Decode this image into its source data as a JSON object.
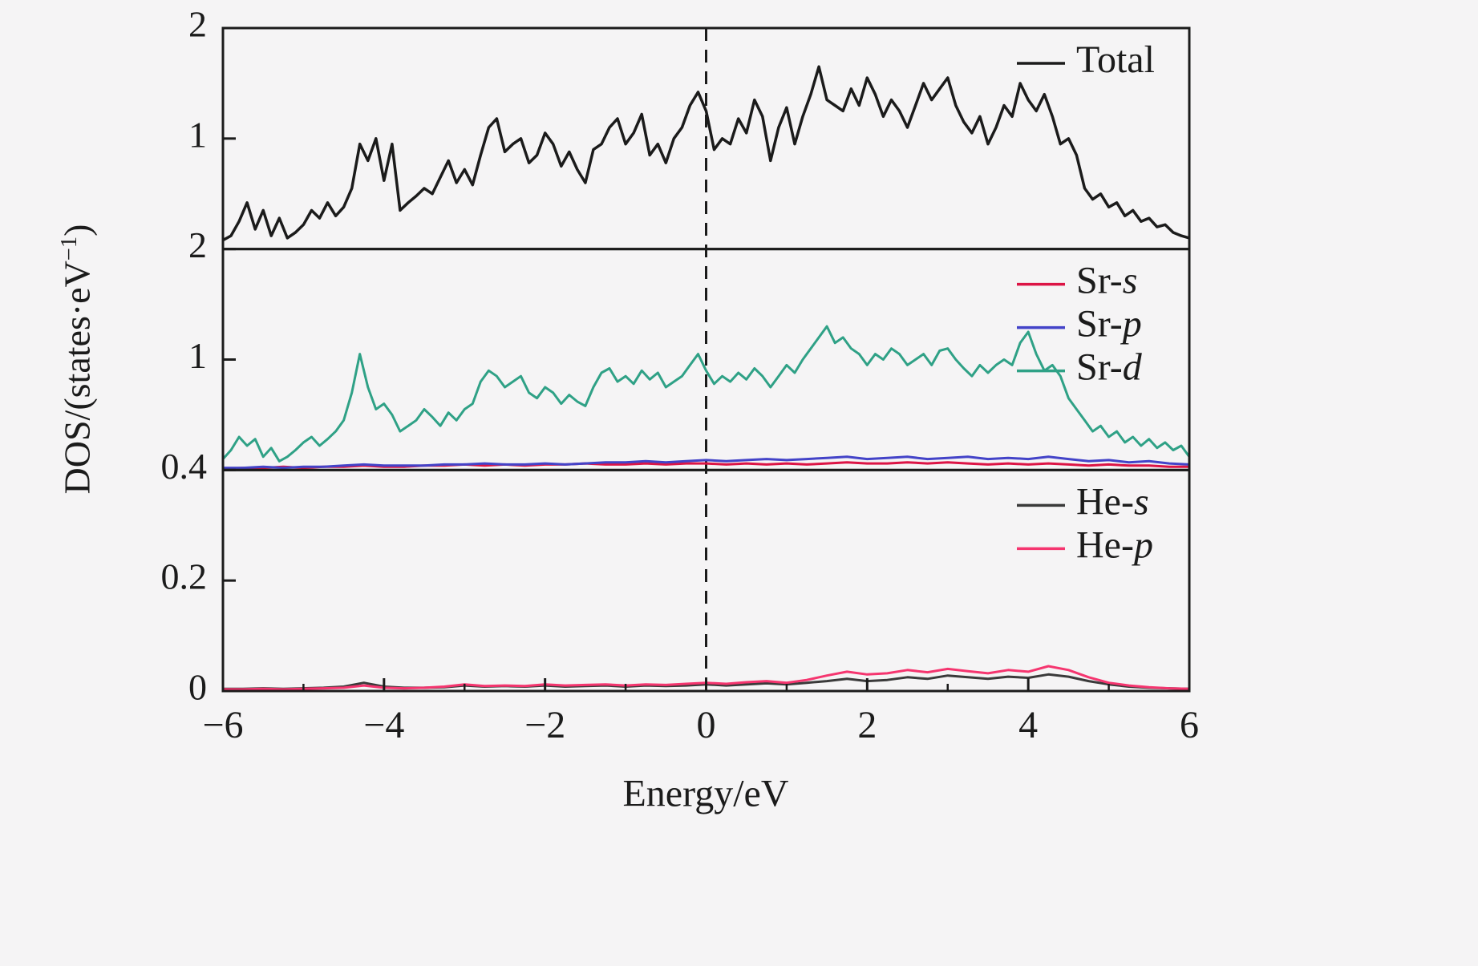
{
  "figure": {
    "background": "#f5f4f5",
    "axis_color": "#1b1b1b",
    "xlabel": "Energy/eV",
    "ylabel_prefix": "DOS/(states·eV",
    "ylabel_sup": "−1",
    "ylabel_suffix": ")"
  },
  "chart_data": {
    "type": "line",
    "title": "",
    "xlabel": "Energy/eV",
    "ylabel": "DOS/(states·eV⁻¹)",
    "x_range": [
      -6,
      6
    ],
    "x_ticks": [
      -6,
      -4,
      -2,
      0,
      2,
      4,
      6
    ],
    "x_tick_labels": [
      "−6",
      "−4",
      "−2",
      "0",
      "2",
      "4",
      "6"
    ],
    "x_minor_ticks": [
      -5,
      -3,
      -1,
      1,
      3,
      5
    ],
    "fermi_line_x": 0,
    "grid": false,
    "legend_position": "top-right",
    "panels": [
      {
        "name": "total",
        "ylim": [
          0,
          2
        ],
        "y_ticks": [
          {
            "v": 2,
            "label": "2"
          },
          {
            "v": 1,
            "label": "1"
          }
        ],
        "series": [
          {
            "name": "Total",
            "label_roman": "Total",
            "label_italic": "",
            "color": "#1b1b1b",
            "width": 3.5,
            "x_start": -6,
            "x_step": 0.1,
            "values": [
              0.08,
              0.12,
              0.25,
              0.42,
              0.18,
              0.35,
              0.12,
              0.28,
              0.1,
              0.15,
              0.22,
              0.35,
              0.28,
              0.42,
              0.3,
              0.38,
              0.55,
              0.95,
              0.8,
              1.0,
              0.62,
              0.95,
              0.35,
              0.42,
              0.48,
              0.55,
              0.5,
              0.65,
              0.8,
              0.6,
              0.72,
              0.58,
              0.85,
              1.1,
              1.18,
              0.88,
              0.95,
              1.0,
              0.78,
              0.85,
              1.05,
              0.95,
              0.75,
              0.88,
              0.72,
              0.6,
              0.9,
              0.95,
              1.1,
              1.18,
              0.95,
              1.05,
              1.22,
              0.85,
              0.95,
              0.78,
              1.0,
              1.1,
              1.3,
              1.42,
              1.25,
              0.9,
              1.0,
              0.95,
              1.18,
              1.05,
              1.35,
              1.2,
              0.8,
              1.1,
              1.28,
              0.95,
              1.2,
              1.4,
              1.65,
              1.35,
              1.3,
              1.25,
              1.45,
              1.3,
              1.55,
              1.4,
              1.2,
              1.35,
              1.25,
              1.1,
              1.3,
              1.5,
              1.35,
              1.45,
              1.55,
              1.3,
              1.15,
              1.05,
              1.2,
              0.95,
              1.1,
              1.3,
              1.2,
              1.5,
              1.35,
              1.25,
              1.4,
              1.2,
              0.95,
              1.0,
              0.85,
              0.55,
              0.45,
              0.5,
              0.38,
              0.42,
              0.3,
              0.35,
              0.25,
              0.28,
              0.2,
              0.22,
              0.15,
              0.12,
              0.1
            ]
          }
        ]
      },
      {
        "name": "sr",
        "ylim": [
          0,
          2
        ],
        "y_ticks": [
          {
            "v": 2,
            "label": "2"
          },
          {
            "v": 1,
            "label": "1"
          }
        ],
        "series": [
          {
            "name": "Sr-s",
            "label_roman": "Sr-",
            "label_italic": "s",
            "color": "#dc1445",
            "width": 3,
            "x_start": -6,
            "x_step": 0.25,
            "values": [
              0.01,
              0.02,
              0.02,
              0.03,
              0.02,
              0.03,
              0.03,
              0.04,
              0.03,
              0.03,
              0.04,
              0.04,
              0.05,
              0.04,
              0.05,
              0.04,
              0.05,
              0.05,
              0.06,
              0.05,
              0.05,
              0.06,
              0.05,
              0.06,
              0.06,
              0.05,
              0.06,
              0.05,
              0.06,
              0.05,
              0.06,
              0.07,
              0.06,
              0.06,
              0.07,
              0.06,
              0.07,
              0.06,
              0.05,
              0.06,
              0.05,
              0.06,
              0.05,
              0.04,
              0.05,
              0.04,
              0.04,
              0.03,
              0.03
            ]
          },
          {
            "name": "Sr-p",
            "label_roman": "Sr-",
            "label_italic": "p",
            "color": "#4343c8",
            "width": 3,
            "x_start": -6,
            "x_step": 0.25,
            "values": [
              0.02,
              0.02,
              0.03,
              0.02,
              0.03,
              0.03,
              0.04,
              0.05,
              0.04,
              0.04,
              0.04,
              0.05,
              0.05,
              0.06,
              0.05,
              0.05,
              0.06,
              0.05,
              0.06,
              0.07,
              0.07,
              0.08,
              0.07,
              0.08,
              0.09,
              0.08,
              0.09,
              0.1,
              0.09,
              0.1,
              0.11,
              0.12,
              0.1,
              0.11,
              0.12,
              0.1,
              0.11,
              0.12,
              0.1,
              0.11,
              0.1,
              0.12,
              0.1,
              0.08,
              0.09,
              0.07,
              0.08,
              0.06,
              0.05
            ]
          },
          {
            "name": "Sr-d",
            "label_roman": "Sr-",
            "label_italic": "d",
            "color": "#2fa186",
            "width": 3,
            "x_start": -6,
            "x_step": 0.1,
            "values": [
              0.1,
              0.18,
              0.3,
              0.22,
              0.28,
              0.12,
              0.2,
              0.08,
              0.12,
              0.18,
              0.25,
              0.3,
              0.22,
              0.28,
              0.35,
              0.45,
              0.7,
              1.05,
              0.75,
              0.55,
              0.6,
              0.5,
              0.35,
              0.4,
              0.45,
              0.55,
              0.48,
              0.4,
              0.52,
              0.45,
              0.55,
              0.6,
              0.8,
              0.9,
              0.85,
              0.75,
              0.8,
              0.85,
              0.7,
              0.65,
              0.75,
              0.7,
              0.6,
              0.68,
              0.62,
              0.58,
              0.75,
              0.88,
              0.92,
              0.8,
              0.85,
              0.78,
              0.9,
              0.82,
              0.88,
              0.75,
              0.8,
              0.85,
              0.95,
              1.05,
              0.9,
              0.78,
              0.85,
              0.8,
              0.88,
              0.82,
              0.92,
              0.85,
              0.75,
              0.85,
              0.95,
              0.88,
              1.0,
              1.1,
              1.2,
              1.3,
              1.15,
              1.2,
              1.1,
              1.05,
              0.95,
              1.05,
              1.0,
              1.1,
              1.05,
              0.95,
              1.0,
              1.05,
              0.95,
              1.08,
              1.1,
              1.0,
              0.92,
              0.85,
              0.95,
              0.88,
              0.95,
              1.0,
              0.95,
              1.15,
              1.25,
              1.05,
              0.9,
              0.95,
              0.85,
              0.65,
              0.55,
              0.45,
              0.35,
              0.4,
              0.3,
              0.35,
              0.25,
              0.3,
              0.22,
              0.28,
              0.2,
              0.25,
              0.18,
              0.22,
              0.12
            ]
          }
        ]
      },
      {
        "name": "he",
        "ylim": [
          0,
          0.4
        ],
        "y_ticks": [
          {
            "v": 0.4,
            "label": "0.4"
          },
          {
            "v": 0.2,
            "label": "0.2"
          },
          {
            "v": 0,
            "label": "0"
          }
        ],
        "series": [
          {
            "name": "He-s",
            "label_roman": "He-",
            "label_italic": "s",
            "color": "#3a3a3a",
            "width": 3,
            "x_start": -6,
            "x_step": 0.25,
            "values": [
              0.004,
              0.004,
              0.005,
              0.004,
              0.005,
              0.006,
              0.008,
              0.015,
              0.008,
              0.006,
              0.006,
              0.007,
              0.01,
              0.008,
              0.009,
              0.008,
              0.01,
              0.008,
              0.009,
              0.01,
              0.008,
              0.01,
              0.009,
              0.01,
              0.012,
              0.01,
              0.012,
              0.014,
              0.012,
              0.015,
              0.018,
              0.022,
              0.018,
              0.02,
              0.025,
              0.022,
              0.028,
              0.025,
              0.022,
              0.026,
              0.024,
              0.03,
              0.026,
              0.018,
              0.012,
              0.008,
              0.006,
              0.005,
              0.004
            ]
          },
          {
            "name": "He-p",
            "label_roman": "He-",
            "label_italic": "p",
            "color": "#f5356f",
            "width": 3,
            "x_start": -6,
            "x_step": 0.25,
            "values": [
              0.003,
              0.003,
              0.004,
              0.003,
              0.004,
              0.005,
              0.006,
              0.01,
              0.006,
              0.005,
              0.006,
              0.008,
              0.012,
              0.009,
              0.01,
              0.009,
              0.012,
              0.01,
              0.011,
              0.012,
              0.01,
              0.012,
              0.011,
              0.013,
              0.015,
              0.013,
              0.016,
              0.018,
              0.015,
              0.02,
              0.028,
              0.035,
              0.03,
              0.032,
              0.038,
              0.034,
              0.04,
              0.036,
              0.032,
              0.038,
              0.035,
              0.045,
              0.038,
              0.025,
              0.015,
              0.01,
              0.007,
              0.005,
              0.004
            ]
          }
        ]
      }
    ]
  }
}
